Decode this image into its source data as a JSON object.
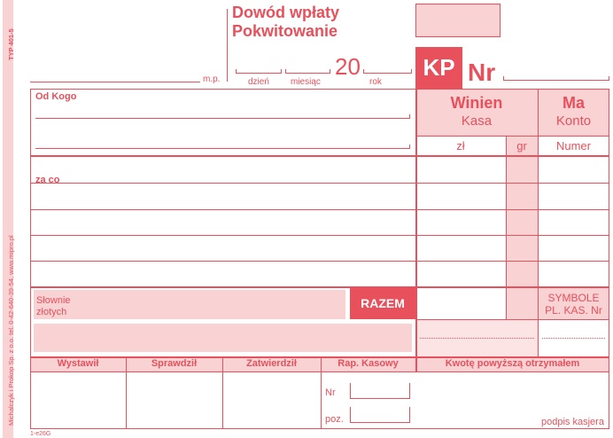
{
  "side": {
    "printer": "Michalczyk i Prokop Sp. z o.o. tel. 0-42-640-39-54, www.mipro.pl",
    "type": "TYP 401-5"
  },
  "header": {
    "title1": "Dowód wpłaty",
    "title2": "Pokwitowanie",
    "mp": "m.p.",
    "day": "dzień",
    "month": "miesiąc",
    "century": "20",
    "year": "rok",
    "kp": "KP",
    "nr": "Nr"
  },
  "debit": {
    "title": "Winien",
    "sub": "Kasa",
    "zl": "zł",
    "gr": "gr"
  },
  "credit": {
    "title": "Ma",
    "sub": "Konto",
    "num": "Numer"
  },
  "fields": {
    "from": "Od Kogo",
    "for": "za co",
    "words1": "Słownie",
    "words2": "złotych",
    "total": "RAZEM",
    "symbols1": "SYMBOLE",
    "symbols2": "PL. KAS. Nr"
  },
  "footer": {
    "cols": [
      "Wystawił",
      "Sprawdził",
      "Zatwierdził",
      "Rap. Kasowy",
      "Kwotę powyższą otrzymałem"
    ],
    "nr": "Nr",
    "poz": "poz.",
    "sign": "podpis kasjera",
    "code": "1-e26G"
  },
  "colors": {
    "accent": "#e8505b",
    "pink": "#f9d2d4"
  }
}
